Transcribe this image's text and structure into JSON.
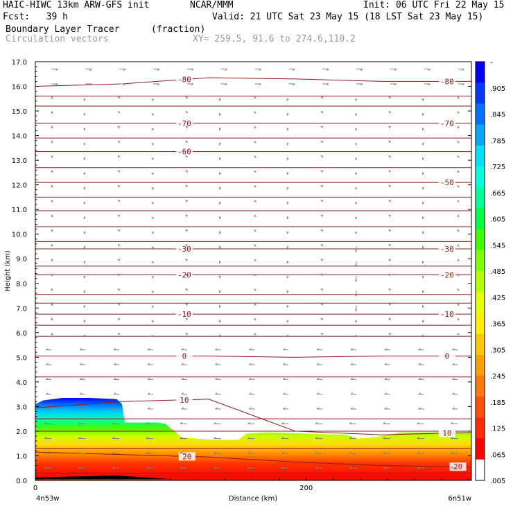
{
  "header": {
    "model": "HAIC-HIWC 13km ARW-GFS init",
    "center": "NCAR/MMM",
    "init": "Init: 06 UTC Fri 22 May 15",
    "fcst": "Fcst:   39 h",
    "valid": "Valid: 21 UTC Sat 23 May 15 (18 LST Sat 23 May 15)",
    "field": "Boundary Layer Tracer",
    "units": "(fraction)",
    "vectors": "Circulation vectors",
    "xy": "XY= 259.5, 91.6 to 274.6,110.2"
  },
  "colors": {
    "contour": "#8b1a1a",
    "vector": "#808080",
    "scale": [
      "#ffffff",
      "#ff0000",
      "#ff2a00",
      "#ff5000",
      "#ff7800",
      "#ffa000",
      "#ffc800",
      "#ffee00",
      "#e6ff00",
      "#b4ff00",
      "#7dff00",
      "#40ff00",
      "#00ff40",
      "#00ff96",
      "#00ffe0",
      "#00e0ff",
      "#00a8ff",
      "#0070ff",
      "#0038ff",
      "#0000ff"
    ]
  },
  "chart_data": {
    "type": "heatmap",
    "title": "Boundary Layer Tracer",
    "xlabel": "Distance (km)",
    "ylabel": "Height (km)",
    "xlim": [
      0,
      322
    ],
    "ylim": [
      0.0,
      17.0
    ],
    "x_ticks": [
      {
        "v": 0,
        "label": "0"
      },
      {
        "v": 200,
        "label": "200"
      }
    ],
    "x_end_labels": {
      "left": "4n53w",
      "right": "6n51w"
    },
    "y_ticks": [
      "0.0",
      "1.0",
      "2.0",
      "3.0",
      "4.0",
      "5.0",
      "6.0",
      "7.0",
      "8.0",
      "9.0",
      "10.0",
      "11.0",
      "12.0",
      "13.0",
      "14.0",
      "15.0",
      "16.0",
      "17.0"
    ],
    "colorbar_labels": [
      "-",
      ".905",
      ".845",
      ".785",
      ".725",
      ".665",
      ".605",
      ".545",
      ".485",
      ".425",
      ".365",
      ".305",
      ".245",
      ".185",
      ".125",
      ".065",
      ".005"
    ],
    "tracer_top": {
      "x": [
        0,
        6,
        20,
        40,
        60,
        64,
        66,
        90,
        96,
        108,
        130,
        150,
        156,
        172,
        200,
        230,
        238,
        250,
        270,
        300,
        322
      ],
      "y": [
        3.1,
        3.25,
        3.35,
        3.35,
        3.3,
        3.1,
        2.35,
        2.35,
        2.3,
        1.75,
        1.65,
        1.65,
        1.9,
        1.95,
        1.9,
        1.85,
        1.7,
        1.75,
        1.95,
        1.95,
        1.95
      ]
    },
    "contours": [
      {
        "label": "20",
        "y": [
          1.15,
          1.05,
          0.95,
          0.75,
          0.6,
          0.55
        ],
        "label_x": [
          112,
          312
        ]
      },
      {
        "label": "10",
        "y": [
          2.95,
          3.2,
          3.3,
          2.0,
          1.85,
          1.95
        ],
        "label_x": [
          110,
          304
        ]
      },
      {
        "label": "0",
        "y": [
          5.05,
          5.05,
          5.05,
          5.0,
          5.05,
          5.05
        ],
        "label_x": [
          110,
          304
        ]
      },
      {
        "label": "-10",
        "y": [
          6.75,
          6.75,
          6.75,
          6.75,
          6.75,
          6.75
        ],
        "label_x": [
          110,
          304
        ]
      },
      {
        "label": "-20",
        "y": [
          8.35,
          8.35,
          8.35,
          8.35,
          8.35,
          8.35
        ],
        "label_x": [
          110,
          304
        ]
      },
      {
        "label": "-30",
        "y": [
          9.4,
          9.4,
          9.4,
          9.4,
          9.4,
          9.4
        ],
        "label_x": [
          110,
          304
        ]
      },
      {
        "label": "-50",
        "y": [
          12.1,
          12.1,
          12.1,
          12.1,
          12.1,
          12.1
        ],
        "label_x": [
          304
        ]
      },
      {
        "label": "-60",
        "y": [
          13.35,
          13.35,
          13.35,
          13.35,
          13.35,
          13.35
        ],
        "label_x": [
          110
        ]
      },
      {
        "label": "-70",
        "y": [
          14.5,
          14.5,
          14.5,
          14.5,
          14.5,
          14.5
        ],
        "label_x": [
          110,
          304
        ]
      },
      {
        "label": "-80",
        "y": [
          16.0,
          16.1,
          16.35,
          16.3,
          16.2,
          16.2
        ],
        "label_x": [
          110,
          304
        ]
      }
    ],
    "contour_x": [
      0,
      64,
      128,
      192,
      256,
      322
    ],
    "extra_isotherms": [
      0.3,
      1.3,
      2.0,
      2.5,
      4.2,
      5.85,
      6.3,
      7.2,
      7.55,
      8.7,
      9.7,
      10.3,
      10.95,
      11.5,
      12.7,
      13.9,
      15.2,
      15.6
    ]
  }
}
